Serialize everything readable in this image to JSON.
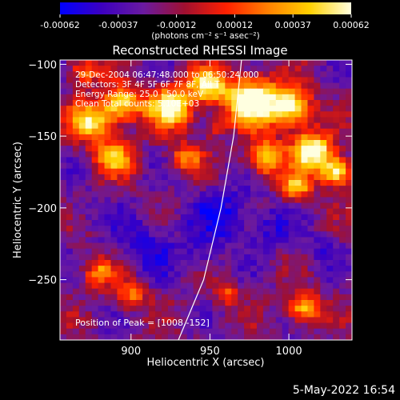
{
  "chart_data": {
    "type": "heatmap",
    "title": "Reconstructed RHESSI Image",
    "xlabel": "Heliocentric X (arcsec)",
    "ylabel": "Heliocentric Y (arcsec)",
    "xlim": [
      855,
      1040
    ],
    "ylim": [
      -292,
      -97
    ],
    "x_ticks": [
      900,
      950,
      1000
    ],
    "y_ticks": [
      -100,
      -150,
      -200,
      -250
    ],
    "info_lines": [
      "29-Dec-2004 06:47:48.000 to 06:50:24.000",
      "Detectors: 3F 4F 5F 6F 7F 8F, All T",
      "Energy Range: 25.0 - 50.0 keV",
      "Clean     Total counts: 5.10E+03"
    ],
    "peak_label": "Position of Peak = [1008,-152]",
    "peak": [
      1008,
      -152
    ],
    "limb_curve": [
      [
        930,
        -292
      ],
      [
        946,
        -250
      ],
      [
        957,
        -200
      ],
      [
        965,
        -150
      ],
      [
        970,
        -97
      ]
    ],
    "colorbar": {
      "min": -0.00062,
      "max": 0.00062,
      "tick_labels": [
        "-0.00062",
        "-0.00037",
        "-0.00012",
        "0.00012",
        "0.00037",
        "0.00062"
      ],
      "unit_label": "(photons cm⁻² s⁻¹ asec⁻²)",
      "colormap": [
        "#0000ff",
        "#3c00c0",
        "#6a1aa0",
        "#a01030",
        "#ff2000",
        "#ff8000",
        "#ffd000",
        "#ffffe0"
      ]
    },
    "grid_cols": 46,
    "grid_rows": 49,
    "hotspots": [
      [
        875,
        -140,
        14,
        6
      ],
      [
        895,
        -128,
        12,
        6
      ],
      [
        925,
        -130,
        14,
        7
      ],
      [
        948,
        -115,
        12,
        6
      ],
      [
        975,
        -125,
        16,
        8
      ],
      [
        1000,
        -130,
        14,
        7
      ],
      [
        1015,
        -160,
        12,
        8
      ],
      [
        1030,
        -175,
        10,
        7
      ],
      [
        890,
        -165,
        12,
        5
      ],
      [
        935,
        -165,
        10,
        4
      ],
      [
        985,
        -165,
        12,
        6
      ],
      [
        1005,
        -185,
        10,
        5
      ],
      [
        1010,
        -270,
        10,
        6
      ],
      [
        880,
        -245,
        10,
        4
      ],
      [
        900,
        -260,
        10,
        4
      ],
      [
        960,
        -260,
        8,
        3
      ],
      [
        870,
        -105,
        10,
        4
      ],
      [
        955,
        -145,
        8,
        3
      ]
    ],
    "coldspots": [
      [
        960,
        -205,
        22,
        7
      ],
      [
        910,
        -225,
        22,
        6
      ],
      [
        945,
        -235,
        12,
        5
      ],
      [
        990,
        -215,
        14,
        5
      ],
      [
        960,
        -150,
        6,
        5
      ],
      [
        870,
        -200,
        10,
        4
      ],
      [
        1020,
        -230,
        12,
        4
      ]
    ],
    "noise_seed": 7
  },
  "timestamp": "5-May-2022 16:54"
}
